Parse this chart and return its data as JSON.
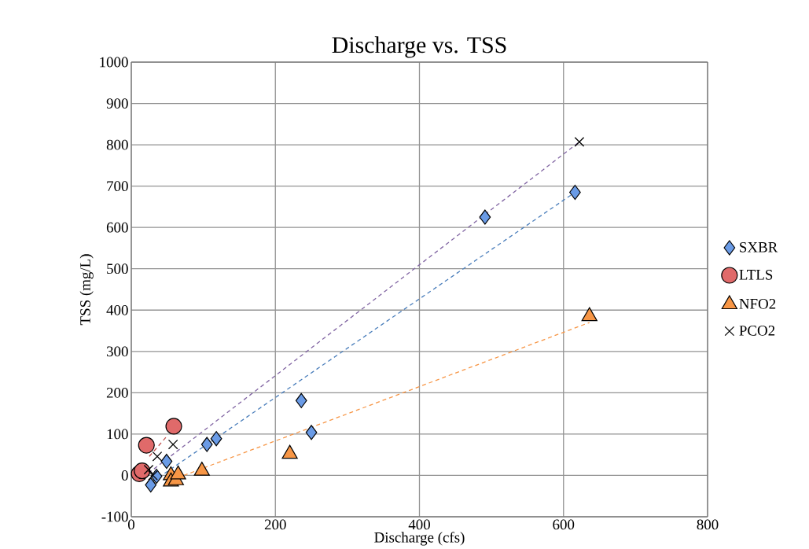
{
  "chart_data": {
    "type": "scatter",
    "title": "Discharge vs. TSS",
    "xlabel": "Discharge (cfs)",
    "ylabel": "TSS (mg/L)",
    "xlim": [
      0,
      800
    ],
    "xticks": [
      0,
      200,
      400,
      600,
      800
    ],
    "ylim": [
      -100,
      1000
    ],
    "yticks": [
      -100,
      0,
      100,
      200,
      300,
      400,
      500,
      600,
      700,
      800,
      900,
      1000
    ],
    "grid": true,
    "legend": "right",
    "series": [
      {
        "name": "SXBR",
        "marker": "diamond",
        "color": "#6a9be6",
        "x": [
          27,
          35,
          49,
          105,
          118,
          236,
          250,
          491,
          616
        ],
        "values": [
          -23,
          -2,
          34,
          75,
          89,
          181,
          104,
          625,
          685
        ]
      },
      {
        "name": "LTLS",
        "marker": "circle",
        "color": "#e06a6a",
        "x": [
          11,
          15,
          21,
          59
        ],
        "values": [
          4,
          11,
          73,
          119
        ]
      },
      {
        "name": "NFO2",
        "marker": "triangle",
        "color": "#f79646",
        "x": [
          55,
          55,
          62,
          65,
          98,
          220,
          636
        ],
        "values": [
          0,
          -15,
          -12,
          2,
          11,
          52,
          385
        ]
      },
      {
        "name": "PCO2",
        "marker": "cross",
        "color": "#000000",
        "x": [
          24,
          30,
          36,
          58,
          622
        ],
        "values": [
          14,
          0,
          46,
          75,
          807
        ]
      },
      {
        "type": "line",
        "line_style": "dashed",
        "marker": "none",
        "color": "#4a7ebb",
        "x": [
          22,
          616
        ],
        "values": [
          -24,
          685
        ]
      },
      {
        "type": "line",
        "line_style": "dashed",
        "marker": "none",
        "color": "#c0504d",
        "x": [
          25,
          49
        ],
        "values": [
          46,
          94
        ]
      },
      {
        "type": "line",
        "line_style": "dashed",
        "marker": "none",
        "color": "#f79646",
        "x": [
          73,
          636
        ],
        "values": [
          0,
          370
        ]
      },
      {
        "type": "line",
        "line_style": "dashed",
        "marker": "none",
        "color": "#8064a2",
        "x": [
          16,
          622
        ],
        "values": [
          -5,
          807
        ]
      }
    ]
  }
}
